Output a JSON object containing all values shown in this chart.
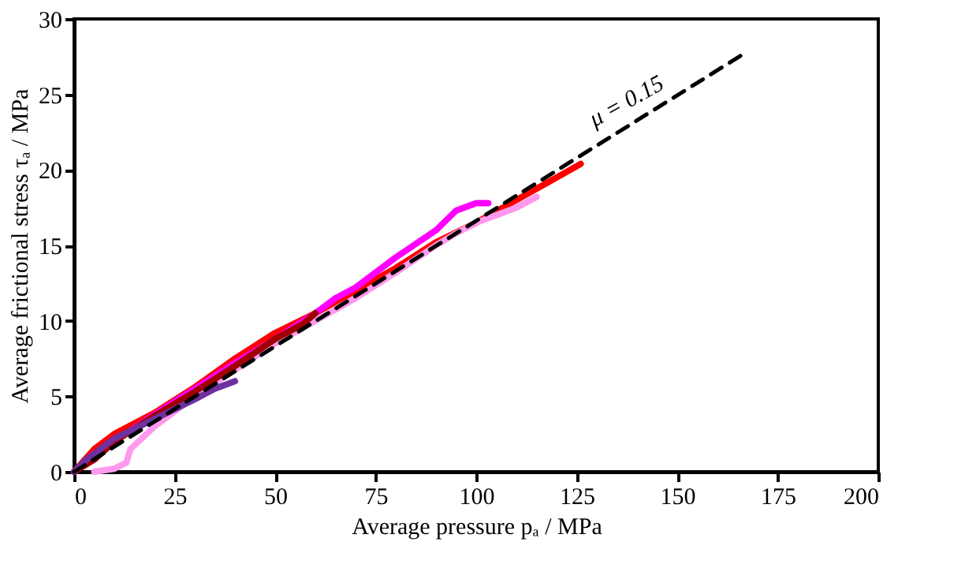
{
  "chart_data": {
    "type": "line",
    "xlabel": "Average pressure pₐ / MPa",
    "ylabel": "Average frictional stress τₐ / MPa",
    "xlim": [
      0,
      200
    ],
    "xticks": [
      0,
      25,
      50,
      75,
      100,
      125,
      150,
      175,
      200
    ],
    "ylim": [
      0,
      30
    ],
    "yticks": [
      0,
      5,
      10,
      15,
      20,
      25,
      30
    ],
    "grid": false,
    "legend": false,
    "series": [
      {
        "color": "#ff0000",
        "x": [
          0,
          5,
          10,
          20,
          30,
          40,
          50,
          60,
          70,
          80,
          90,
          100,
          110,
          120,
          126
        ],
        "values": [
          0,
          1.5,
          2.5,
          3.9,
          5.6,
          7.5,
          9.2,
          10.5,
          12,
          13.5,
          15.2,
          16.5,
          18,
          19.5,
          20.4
        ]
      },
      {
        "color": "#ff99ee",
        "x": [
          5,
          10,
          13,
          14,
          20,
          30,
          50,
          70,
          80,
          90,
          95,
          100,
          110,
          115
        ],
        "values": [
          0,
          0.2,
          0.6,
          1.5,
          3,
          5,
          8.5,
          11.5,
          13.2,
          15,
          15.8,
          16.5,
          17.5,
          18.2
        ]
      },
      {
        "color": "#ff00ff",
        "x": [
          0,
          10,
          20,
          40,
          50,
          60,
          65,
          70,
          80,
          90,
          95,
          100,
          103
        ],
        "values": [
          0,
          2,
          3.8,
          7.2,
          8.8,
          10.5,
          11.5,
          12.2,
          14.2,
          16,
          17.3,
          17.8,
          17.8
        ]
      },
      {
        "color": "#a00000",
        "x": [
          0,
          5,
          10,
          20,
          30,
          40,
          50,
          57,
          60
        ],
        "values": [
          0,
          0.8,
          2,
          3.7,
          5.3,
          7,
          8.8,
          9.8,
          10.5
        ]
      },
      {
        "color": "#7030a0",
        "x": [
          0,
          3,
          10,
          20,
          30,
          35,
          40
        ],
        "values": [
          0,
          0.8,
          2.2,
          3.5,
          4.8,
          5.5,
          6
        ]
      },
      {
        "color": "#000000",
        "line_style": "dashed",
        "x": [
          0,
          166
        ],
        "values": [
          0,
          27.6
        ]
      }
    ],
    "annotations": [
      {
        "text": "μ = 0.15",
        "x": 140,
        "y": 23.3
      }
    ]
  }
}
